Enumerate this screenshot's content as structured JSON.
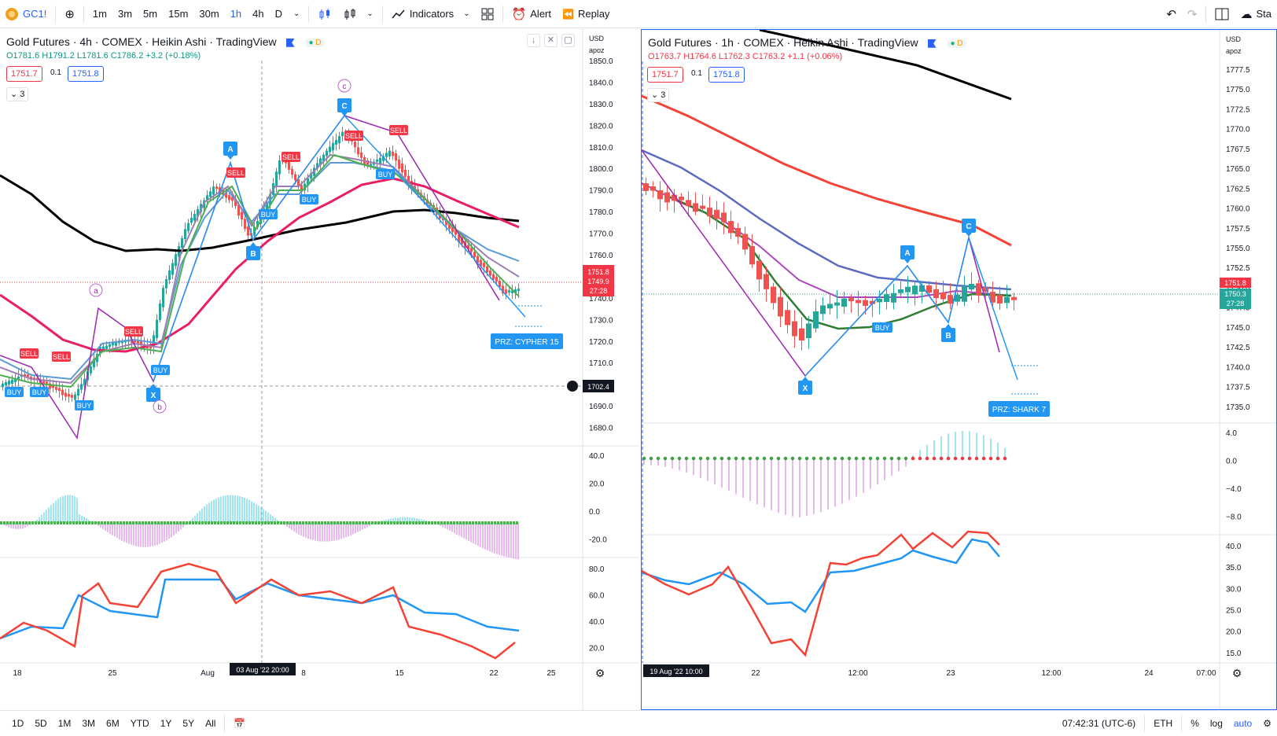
{
  "toolbar": {
    "symbol": "GC1!",
    "intervals": [
      "1m",
      "3m",
      "5m",
      "15m",
      "30m",
      "1h",
      "4h",
      "D"
    ],
    "active_interval": "1h",
    "indicators_label": "Indicators",
    "alert_label": "Alert",
    "replay_label": "Replay",
    "right_cut_label": "Sta"
  },
  "bottom_bar": {
    "ranges": [
      "1D",
      "5D",
      "1M",
      "3M",
      "6M",
      "YTD",
      "1Y",
      "5Y",
      "All"
    ],
    "clock": "07:42:31 (UTC-6)",
    "session": "ETH",
    "pct": "%",
    "log": "log",
    "auto": "auto"
  },
  "left_chart": {
    "title": "Gold Futures · 4h · COMEX · Heikin Ashi · TradingView",
    "ohlc": {
      "o": "O1781.6",
      "h": "H1791.2",
      "l": "L1781.6",
      "c": "C1786.2",
      "chg": "+3.2 (+0.18%)"
    },
    "sell_price": "1751.7",
    "spread": "0.1",
    "buy_price": "1751.8",
    "collapse_count": "3",
    "currency": "USD",
    "scale_mode": "apoz",
    "price_ticks": [
      "1850.0",
      "1840.0",
      "1830.0",
      "1820.0",
      "1810.0",
      "1800.0",
      "1790.0",
      "1780.0",
      "1770.0",
      "1760.0",
      "1750.0",
      "1740.0",
      "1730.0",
      "1720.0",
      "1710.0",
      "1700.0",
      "1690.0",
      "1680.0"
    ],
    "last_price": "1751.8",
    "last_price2": "1749.9",
    "countdown": "27:28",
    "crosshair_price": "1702.4",
    "crosshair_time": "03 Aug '22   20:00",
    "time_ticks": [
      "18",
      "25",
      "Aug",
      "8",
      "15",
      "22",
      "25"
    ],
    "osc_ticks": [
      "40.0",
      "20.0",
      "0.0",
      "-20.0"
    ],
    "rsi_ticks": [
      "80.0",
      "60.0",
      "40.0",
      "20.0"
    ],
    "labels": {
      "a": "a",
      "b": "b",
      "c": "c",
      "A": "A",
      "B": "B",
      "C": "C",
      "X": "X",
      "sell": "SELL",
      "buy": "BUY",
      "prz": "PRZ: CYPHER 15"
    }
  },
  "right_chart": {
    "title": "Gold Futures · 1h · COMEX · Heikin Ashi · TradingView",
    "ohlc": {
      "o": "O1763.7",
      "h": "H1764.6",
      "l": "L1762.3",
      "c": "C1763.2",
      "chg": "+1.1 (+0.06%)"
    },
    "sell_price": "1751.7",
    "spread": "0.1",
    "buy_price": "1751.8",
    "collapse_count": "3",
    "currency": "USD",
    "scale_mode": "apoz",
    "price_ticks": [
      "1777.5",
      "1775.0",
      "1772.5",
      "1770.0",
      "1767.5",
      "1765.0",
      "1762.5",
      "1760.0",
      "1757.5",
      "1755.0",
      "1752.5",
      "1750.0",
      "1747.5",
      "1745.0",
      "1742.5",
      "1740.0",
      "1737.5",
      "1735.0"
    ],
    "last_price": "1751.8",
    "last_price2": "1750.3",
    "countdown": "27:28",
    "crosshair_time": "19 Aug '22   10:00",
    "time_ticks": [
      "22",
      "12:00",
      "23",
      "12:00",
      "24",
      "07:00"
    ],
    "osc_ticks": [
      "4.0",
      "0.0",
      "−4.0",
      "−8.0"
    ],
    "rsi_ticks": [
      "40.0",
      "35.0",
      "30.0",
      "25.0",
      "20.0",
      "15.0"
    ],
    "labels": {
      "A": "A",
      "B": "B",
      "C": "C",
      "X": "X",
      "buy": "BUY",
      "prz": "PRZ: SHARK 7"
    }
  },
  "colors": {
    "accent": "#2962ff",
    "up": "#26a69a",
    "down": "#ef5350",
    "sma200": "#000000",
    "ema_pink": "#e91e63",
    "pattern_blue": "#2196f3",
    "pattern_purple": "#9c27b0"
  }
}
